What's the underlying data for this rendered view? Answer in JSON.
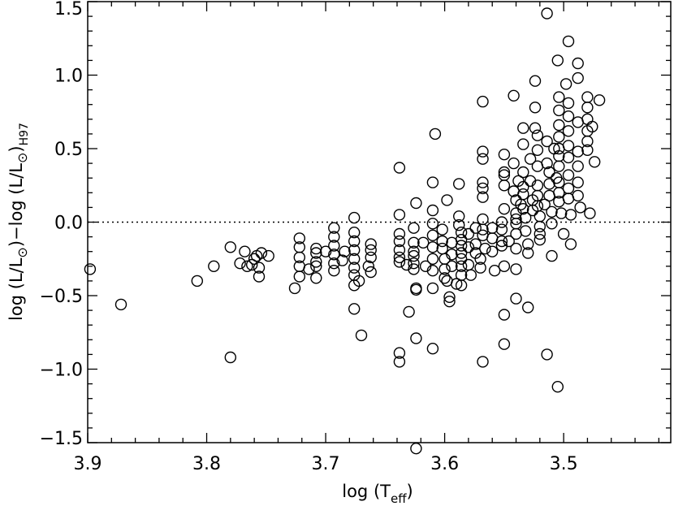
{
  "chart_data": {
    "type": "scatter",
    "title": "",
    "xlabel": {
      "main": "log (T",
      "sub": "eff",
      "close": ")"
    },
    "ylabel": {
      "part1": "log (L/L",
      "sun1": "⊙",
      "part2": ")−log (L/L",
      "sun2": "⊙",
      "part3": ")",
      "sub": "H97"
    },
    "xlim": [
      3.9,
      3.41
    ],
    "ylim": [
      -1.5,
      1.5
    ],
    "x_reversed": true,
    "x_ticks": [
      3.9,
      3.8,
      3.7,
      3.6,
      3.5
    ],
    "x_tick_labels": [
      "3.9",
      "3.8",
      "3.7",
      "3.6",
      "3.5"
    ],
    "y_ticks": [
      -1.5,
      -1.0,
      -0.5,
      0.0,
      0.5,
      1.0,
      1.5
    ],
    "y_tick_labels": [
      "−1.5",
      "−1.0",
      "−0.5",
      "0.0",
      "0.5",
      "1.0",
      "1.5"
    ],
    "reference_line": {
      "y": 0.0,
      "style": "dotted"
    },
    "marker": "open-circle",
    "points": [
      [
        3.898,
        -0.32
      ],
      [
        3.872,
        -0.56
      ],
      [
        3.808,
        -0.4
      ],
      [
        3.794,
        -0.3
      ],
      [
        3.78,
        -0.92
      ],
      [
        3.78,
        -0.17
      ],
      [
        3.772,
        -0.28
      ],
      [
        3.768,
        -0.2
      ],
      [
        3.766,
        -0.3
      ],
      [
        3.762,
        -0.29
      ],
      [
        3.76,
        -0.25
      ],
      [
        3.758,
        -0.23
      ],
      [
        3.756,
        -0.31
      ],
      [
        3.756,
        -0.37
      ],
      [
        3.754,
        -0.21
      ],
      [
        3.748,
        -0.23
      ],
      [
        3.726,
        -0.45
      ],
      [
        3.722,
        -0.11
      ],
      [
        3.722,
        -0.17
      ],
      [
        3.722,
        -0.24
      ],
      [
        3.722,
        -0.3
      ],
      [
        3.722,
        -0.37
      ],
      [
        3.714,
        -0.32
      ],
      [
        3.708,
        -0.38
      ],
      [
        3.708,
        -0.3
      ],
      [
        3.708,
        -0.27
      ],
      [
        3.708,
        -0.21
      ],
      [
        3.708,
        -0.18
      ],
      [
        3.7,
        -0.2
      ],
      [
        3.693,
        -0.04
      ],
      [
        3.693,
        -0.1
      ],
      [
        3.693,
        -0.16
      ],
      [
        3.693,
        -0.22
      ],
      [
        3.693,
        -0.28
      ],
      [
        3.693,
        -0.33
      ],
      [
        3.686,
        -0.26
      ],
      [
        3.684,
        -0.2
      ],
      [
        3.676,
        0.03
      ],
      [
        3.676,
        -0.07
      ],
      [
        3.676,
        -0.13
      ],
      [
        3.676,
        -0.19
      ],
      [
        3.676,
        -0.25
      ],
      [
        3.676,
        -0.31
      ],
      [
        3.676,
        -0.36
      ],
      [
        3.676,
        -0.43
      ],
      [
        3.676,
        -0.59
      ],
      [
        3.67,
        -0.77
      ],
      [
        3.672,
        -0.4
      ],
      [
        3.664,
        -0.3
      ],
      [
        3.662,
        -0.15
      ],
      [
        3.662,
        -0.19
      ],
      [
        3.662,
        -0.24
      ],
      [
        3.662,
        -0.34
      ],
      [
        3.638,
        0.37
      ],
      [
        3.638,
        0.05
      ],
      [
        3.638,
        -0.08
      ],
      [
        3.638,
        -0.13
      ],
      [
        3.638,
        -0.19
      ],
      [
        3.638,
        -0.24
      ],
      [
        3.638,
        -0.27
      ],
      [
        3.638,
        -0.89
      ],
      [
        3.638,
        -0.95
      ],
      [
        3.632,
        -0.29
      ],
      [
        3.63,
        -0.61
      ],
      [
        3.626,
        -0.04
      ],
      [
        3.626,
        -0.14
      ],
      [
        3.626,
        -0.2
      ],
      [
        3.626,
        -0.23
      ],
      [
        3.626,
        -0.28
      ],
      [
        3.626,
        -0.32
      ],
      [
        3.624,
        0.13
      ],
      [
        3.624,
        -0.45
      ],
      [
        3.624,
        -0.46
      ],
      [
        3.624,
        -0.79
      ],
      [
        3.624,
        -1.54
      ],
      [
        3.618,
        -0.14
      ],
      [
        3.616,
        -0.3
      ],
      [
        3.61,
        0.27
      ],
      [
        3.61,
        0.08
      ],
      [
        3.61,
        -0.01
      ],
      [
        3.61,
        -0.09
      ],
      [
        3.61,
        -0.17
      ],
      [
        3.61,
        -0.25
      ],
      [
        3.61,
        -0.33
      ],
      [
        3.61,
        -0.45
      ],
      [
        3.61,
        -0.86
      ],
      [
        3.608,
        0.6
      ],
      [
        3.602,
        -0.05
      ],
      [
        3.602,
        -0.13
      ],
      [
        3.602,
        -0.18
      ],
      [
        3.6,
        -0.25
      ],
      [
        3.6,
        -0.32
      ],
      [
        3.6,
        -0.38
      ],
      [
        3.598,
        0.15
      ],
      [
        3.598,
        -0.4
      ],
      [
        3.596,
        -0.51
      ],
      [
        3.596,
        -0.54
      ],
      [
        3.594,
        -0.14
      ],
      [
        3.594,
        -0.22
      ],
      [
        3.594,
        -0.3
      ],
      [
        3.59,
        -0.42
      ],
      [
        3.588,
        0.26
      ],
      [
        3.588,
        0.04
      ],
      [
        3.588,
        -0.02
      ],
      [
        3.586,
        -0.07
      ],
      [
        3.586,
        -0.12
      ],
      [
        3.586,
        -0.16
      ],
      [
        3.586,
        -0.21
      ],
      [
        3.586,
        -0.25
      ],
      [
        3.586,
        -0.3
      ],
      [
        3.586,
        -0.36
      ],
      [
        3.586,
        -0.43
      ],
      [
        3.58,
        -0.08
      ],
      [
        3.58,
        -0.17
      ],
      [
        3.58,
        -0.29
      ],
      [
        3.578,
        -0.36
      ],
      [
        3.574,
        -0.04
      ],
      [
        3.574,
        -0.15
      ],
      [
        3.574,
        -0.21
      ],
      [
        3.57,
        -0.25
      ],
      [
        3.57,
        -0.31
      ],
      [
        3.568,
        0.82
      ],
      [
        3.568,
        0.48
      ],
      [
        3.568,
        0.43
      ],
      [
        3.568,
        0.27
      ],
      [
        3.568,
        0.23
      ],
      [
        3.568,
        0.17
      ],
      [
        3.568,
        0.02
      ],
      [
        3.568,
        -0.05
      ],
      [
        3.568,
        -0.09
      ],
      [
        3.568,
        -0.95
      ],
      [
        3.566,
        -0.18
      ],
      [
        3.56,
        -0.04
      ],
      [
        3.56,
        -0.11
      ],
      [
        3.56,
        -0.2
      ],
      [
        3.558,
        -0.33
      ],
      [
        3.552,
        -0.05
      ],
      [
        3.552,
        0.0
      ],
      [
        3.552,
        -0.13
      ],
      [
        3.552,
        -0.16
      ],
      [
        3.55,
        0.46
      ],
      [
        3.55,
        0.34
      ],
      [
        3.55,
        0.32
      ],
      [
        3.55,
        0.25
      ],
      [
        3.55,
        0.09
      ],
      [
        3.55,
        -0.3
      ],
      [
        3.55,
        -0.63
      ],
      [
        3.55,
        -0.83
      ],
      [
        3.546,
        -0.13
      ],
      [
        3.542,
        0.86
      ],
      [
        3.542,
        0.4
      ],
      [
        3.542,
        0.21
      ],
      [
        3.54,
        0.15
      ],
      [
        3.54,
        0.06
      ],
      [
        3.54,
        0.02
      ],
      [
        3.54,
        -0.01
      ],
      [
        3.54,
        -0.08
      ],
      [
        3.54,
        -0.18
      ],
      [
        3.54,
        -0.32
      ],
      [
        3.54,
        -0.52
      ],
      [
        3.538,
        0.28
      ],
      [
        3.536,
        0.12
      ],
      [
        3.534,
        0.64
      ],
      [
        3.534,
        0.53
      ],
      [
        3.534,
        0.34
      ],
      [
        3.534,
        0.24
      ],
      [
        3.534,
        0.19
      ],
      [
        3.534,
        0.09
      ],
      [
        3.532,
        0.03
      ],
      [
        3.532,
        -0.06
      ],
      [
        3.53,
        -0.15
      ],
      [
        3.53,
        -0.21
      ],
      [
        3.53,
        -0.58
      ],
      [
        3.528,
        0.43
      ],
      [
        3.528,
        0.28
      ],
      [
        3.526,
        0.15
      ],
      [
        3.526,
        0.08
      ],
      [
        3.524,
        0.96
      ],
      [
        3.524,
        0.78
      ],
      [
        3.524,
        0.64
      ],
      [
        3.522,
        0.59
      ],
      [
        3.522,
        0.49
      ],
      [
        3.522,
        0.38
      ],
      [
        3.522,
        0.25
      ],
      [
        3.522,
        0.18
      ],
      [
        3.522,
        0.11
      ],
      [
        3.52,
        0.04
      ],
      [
        3.52,
        -0.03
      ],
      [
        3.52,
        -0.08
      ],
      [
        3.52,
        -0.12
      ],
      [
        3.516,
        0.12
      ],
      [
        3.514,
        1.42
      ],
      [
        3.514,
        0.55
      ],
      [
        3.514,
        0.4
      ],
      [
        3.514,
        -0.9
      ],
      [
        3.512,
        0.34
      ],
      [
        3.512,
        0.26
      ],
      [
        3.512,
        0.18
      ],
      [
        3.51,
        0.07
      ],
      [
        3.51,
        -0.01
      ],
      [
        3.51,
        -0.23
      ],
      [
        3.508,
        0.5
      ],
      [
        3.506,
        0.3
      ],
      [
        3.505,
        1.1
      ],
      [
        3.505,
        -1.12
      ],
      [
        3.504,
        0.85
      ],
      [
        3.504,
        0.76
      ],
      [
        3.504,
        0.66
      ],
      [
        3.504,
        0.58
      ],
      [
        3.504,
        0.5
      ],
      [
        3.504,
        0.45
      ],
      [
        3.504,
        0.38
      ],
      [
        3.504,
        0.27
      ],
      [
        3.504,
        0.2
      ],
      [
        3.504,
        0.14
      ],
      [
        3.502,
        0.06
      ],
      [
        3.5,
        -0.08
      ],
      [
        3.498,
        0.94
      ],
      [
        3.496,
        1.23
      ],
      [
        3.496,
        0.81
      ],
      [
        3.496,
        0.72
      ],
      [
        3.496,
        0.62
      ],
      [
        3.496,
        0.52
      ],
      [
        3.496,
        0.44
      ],
      [
        3.496,
        0.32
      ],
      [
        3.496,
        0.23
      ],
      [
        3.496,
        0.16
      ],
      [
        3.494,
        0.05
      ],
      [
        3.494,
        -0.15
      ],
      [
        3.488,
        1.08
      ],
      [
        3.488,
        0.98
      ],
      [
        3.488,
        0.68
      ],
      [
        3.488,
        0.48
      ],
      [
        3.488,
        0.38
      ],
      [
        3.488,
        0.27
      ],
      [
        3.488,
        0.18
      ],
      [
        3.486,
        0.1
      ],
      [
        3.48,
        0.85
      ],
      [
        3.48,
        0.78
      ],
      [
        3.48,
        0.7
      ],
      [
        3.48,
        0.62
      ],
      [
        3.48,
        0.55
      ],
      [
        3.48,
        0.49
      ],
      [
        3.478,
        0.06
      ],
      [
        3.476,
        0.65
      ],
      [
        3.474,
        0.41
      ],
      [
        3.47,
        0.83
      ]
    ]
  }
}
